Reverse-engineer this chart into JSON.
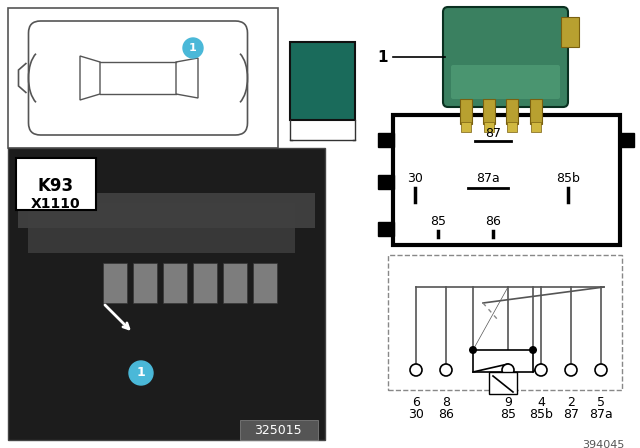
{
  "bg": "#ffffff",
  "teal": "#1a6b5b",
  "relay_green": "#3a8060",
  "relay_dark": "#1a4a30",
  "relay_pin_gold": "#b0922a",
  "car_line": "#555555",
  "badge_blue": "#4ab8d8",
  "photo_bg": "#1e1e1e",
  "photo_mid": "#383838",
  "photo_ref": "325015",
  "ref_num": "394045",
  "pin_r1": [
    "6",
    "8",
    "9",
    "4",
    "2",
    "5"
  ],
  "pin_r2": [
    "30",
    "86",
    "85",
    "85b",
    "87",
    "87a"
  ]
}
